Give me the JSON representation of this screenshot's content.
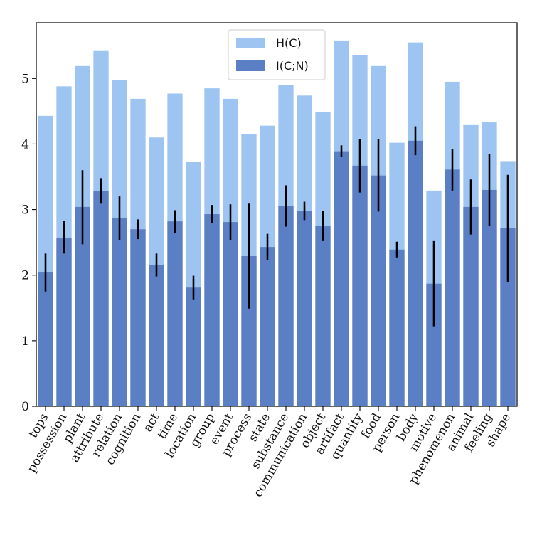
{
  "chart_data": {
    "type": "bar",
    "categories": [
      "tops",
      "possession",
      "plant",
      "attribute",
      "relation",
      "cognition",
      "act",
      "time",
      "location",
      "group",
      "event",
      "process",
      "state",
      "substance",
      "communication",
      "object",
      "artifact",
      "quantity",
      "food",
      "person",
      "body",
      "motive",
      "phenomenon",
      "animal",
      "feeling",
      "shape"
    ],
    "series": [
      {
        "name": "H(C)",
        "color": "#9ec5f2",
        "values": [
          4.43,
          4.88,
          5.19,
          5.43,
          4.98,
          4.69,
          4.1,
          4.77,
          3.73,
          4.85,
          4.69,
          4.15,
          4.28,
          4.9,
          4.74,
          4.49,
          5.58,
          5.36,
          5.19,
          4.02,
          5.55,
          3.29,
          4.95,
          4.3,
          4.33,
          3.74
        ]
      },
      {
        "name": "I(C;N)",
        "color": "#5b7fc4",
        "values": [
          2.04,
          2.57,
          3.04,
          3.28,
          2.87,
          2.7,
          2.16,
          2.82,
          1.81,
          2.93,
          2.81,
          2.29,
          2.43,
          3.06,
          2.98,
          2.75,
          3.89,
          3.67,
          3.52,
          2.39,
          4.05,
          1.87,
          3.61,
          3.04,
          3.3,
          2.72
        ],
        "error_low": [
          1.75,
          2.33,
          2.47,
          3.09,
          2.53,
          2.55,
          1.98,
          2.64,
          1.63,
          2.79,
          2.54,
          1.49,
          2.23,
          2.74,
          2.84,
          2.52,
          3.8,
          3.26,
          2.97,
          2.27,
          3.83,
          1.22,
          3.29,
          2.62,
          2.75,
          1.9
        ],
        "error_high": [
          2.33,
          2.83,
          3.6,
          3.48,
          3.2,
          2.85,
          2.33,
          2.99,
          1.99,
          3.07,
          3.08,
          3.09,
          2.63,
          3.37,
          3.12,
          2.98,
          3.98,
          4.08,
          4.07,
          2.51,
          4.27,
          2.52,
          3.92,
          3.46,
          3.85,
          3.53
        ]
      }
    ],
    "title": "",
    "xlabel": "",
    "ylabel": "",
    "ylim": [
      0,
      5.85
    ],
    "yticks": [
      0,
      1,
      2,
      3,
      4,
      5
    ],
    "ytick_labels": [
      "0",
      "1",
      "2",
      "3",
      "4",
      "5"
    ],
    "grid": false,
    "legend_position": "top-center",
    "error_bar_color": "#000000"
  }
}
